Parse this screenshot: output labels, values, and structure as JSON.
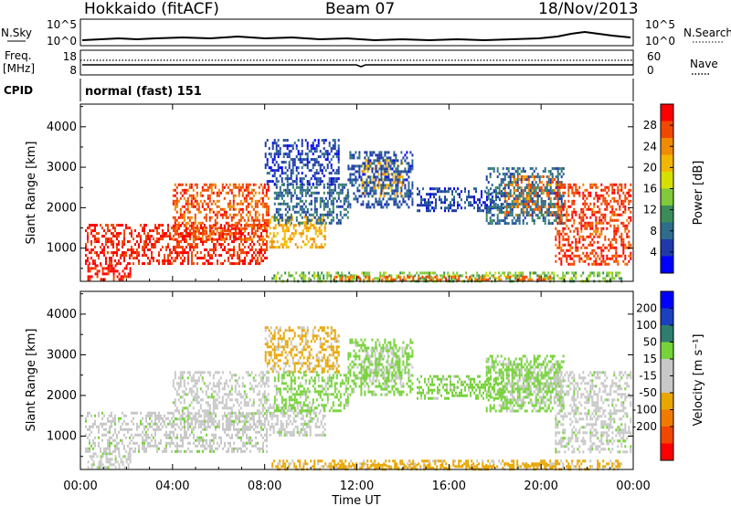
{
  "header": {
    "station": "Hokkaido (fitACF)",
    "beam": "Beam 07",
    "date": "18/Nov/2013"
  },
  "strip_labels": {
    "nsky": "N.Sky",
    "freq": "Freq.",
    "freq_unit": "[MHz]",
    "cpid": "CPID",
    "nsearch": "N.Search",
    "nave": "Nave",
    "cpid_text": "normal (fast) 151",
    "noise_ticks": [
      "10^5",
      "10^0"
    ],
    "freq_ticks": [
      "18",
      "8"
    ],
    "nave_ticks": [
      "60",
      "0"
    ]
  },
  "colors": {
    "power": [
      "#0000ff",
      "#1f3aa8",
      "#2e6d8c",
      "#3c8c5a",
      "#7fc93a",
      "#d6e000",
      "#f2b600",
      "#f08a00",
      "#f04800",
      "#ff0000"
    ],
    "velocity": [
      "#0000ff",
      "#1a40c0",
      "#2e7d6e",
      "#77d33a",
      "#c8c8c8",
      "#c8c8c8",
      "#e8a600",
      "#f07a00",
      "#f04800",
      "#ff0000"
    ]
  },
  "chart_data": [
    {
      "type": "heatmap",
      "title": "",
      "xlabel": "",
      "ylabel": "Slant Range [km]",
      "x_ticks": [
        "00:00",
        "04:00",
        "08:00",
        "12:00",
        "16:00",
        "20:00",
        "00:00"
      ],
      "x_range_hours": [
        0,
        24
      ],
      "y_ticks": [
        1000,
        2000,
        3000,
        4000
      ],
      "ylim": [
        180,
        4560
      ],
      "colorbar": {
        "label": "Power [dB]",
        "ticks": [
          4,
          8,
          12,
          16,
          20,
          24,
          28
        ],
        "range": [
          0,
          32
        ]
      },
      "regions": [
        {
          "name": "ground-scatter-low",
          "x": [
            0.3,
            2.2
          ],
          "y": [
            250,
            600
          ],
          "level": 30
        },
        {
          "name": "morning-echo",
          "x": [
            0.2,
            8.1
          ],
          "y": [
            600,
            1600
          ],
          "level": 29
        },
        {
          "name": "morning-streaks",
          "x": [
            4.0,
            8.2
          ],
          "y": [
            1200,
            2600
          ],
          "level": 27
        },
        {
          "name": "tongue-low",
          "x": [
            8.2,
            10.6
          ],
          "y": [
            1000,
            1800
          ],
          "level": 22
        },
        {
          "name": "tongue-mid",
          "x": [
            8.4,
            11.6
          ],
          "y": [
            1600,
            2600
          ],
          "level": 8
        },
        {
          "name": "tongue-high",
          "x": [
            8.0,
            11.2
          ],
          "y": [
            2600,
            3700
          ],
          "level": 5
        },
        {
          "name": "noon-patch",
          "x": [
            12.2,
            14.0
          ],
          "y": [
            2300,
            3200
          ],
          "level": 22
        },
        {
          "name": "noon-patch-edge",
          "x": [
            11.6,
            14.4
          ],
          "y": [
            2000,
            3400
          ],
          "level": 6
        },
        {
          "name": "afternoon-band",
          "x": [
            14.6,
            18.4
          ],
          "y": [
            1900,
            2500
          ],
          "level": 5
        },
        {
          "name": "evening-patch",
          "x": [
            18.4,
            20.8
          ],
          "y": [
            1800,
            2800
          ],
          "level": 25
        },
        {
          "name": "evening-edge",
          "x": [
            17.6,
            21.0
          ],
          "y": [
            1600,
            3000
          ],
          "level": 8
        },
        {
          "name": "late-streaks",
          "x": [
            20.6,
            23.9
          ],
          "y": [
            600,
            2600
          ],
          "level": 28
        },
        {
          "name": "near-range-band",
          "x": [
            8.3,
            23.5
          ],
          "y": [
            190,
            420
          ],
          "level": 14
        },
        {
          "name": "near-range-hot",
          "x": [
            11.0,
            20.5
          ],
          "y": [
            190,
            320
          ],
          "level": 26
        }
      ]
    },
    {
      "type": "heatmap",
      "title": "",
      "xlabel": "Time UT",
      "ylabel": "Slant Range [km]",
      "x_ticks": [
        "00:00",
        "04:00",
        "08:00",
        "12:00",
        "16:00",
        "20:00",
        "00:00"
      ],
      "x_range_hours": [
        0,
        24
      ],
      "y_ticks": [
        1000,
        2000,
        3000,
        4000
      ],
      "ylim": [
        180,
        4560
      ],
      "colorbar": {
        "label": "Velocity [m s⁻¹]",
        "ticks": [
          "200",
          "100",
          "50",
          "15",
          "-15",
          "-50",
          "-100",
          "-200"
        ],
        "range": [
          -250,
          250
        ]
      },
      "regions": [
        {
          "name": "ground-scatter-low",
          "x": [
            0.3,
            2.2
          ],
          "y": [
            250,
            600
          ],
          "value": 0
        },
        {
          "name": "morning-echo",
          "x": [
            0.2,
            8.1
          ],
          "y": [
            600,
            1600
          ],
          "value": 0
        },
        {
          "name": "morning-streaks",
          "x": [
            4.0,
            8.2
          ],
          "y": [
            1200,
            2600
          ],
          "value": 0
        },
        {
          "name": "tongue-low",
          "x": [
            8.2,
            10.6
          ],
          "y": [
            1000,
            1800
          ],
          "value": 0
        },
        {
          "name": "tongue-mid",
          "x": [
            8.4,
            11.6
          ],
          "y": [
            1600,
            2600
          ],
          "value": 30
        },
        {
          "name": "tongue-high",
          "x": [
            8.0,
            11.2
          ],
          "y": [
            2600,
            3700
          ],
          "value": -60
        },
        {
          "name": "noon-patch",
          "x": [
            12.2,
            14.0
          ],
          "y": [
            2300,
            3200
          ],
          "value": 0
        },
        {
          "name": "noon-patch-edge",
          "x": [
            11.6,
            14.4
          ],
          "y": [
            2000,
            3400
          ],
          "value": 30
        },
        {
          "name": "afternoon-band",
          "x": [
            14.6,
            18.4
          ],
          "y": [
            1900,
            2500
          ],
          "value": 30
        },
        {
          "name": "evening-patch",
          "x": [
            18.4,
            20.8
          ],
          "y": [
            1800,
            2800
          ],
          "value": 0
        },
        {
          "name": "evening-edge",
          "x": [
            17.6,
            21.0
          ],
          "y": [
            1600,
            3000
          ],
          "value": 30
        },
        {
          "name": "late-streaks",
          "x": [
            20.6,
            23.9
          ],
          "y": [
            600,
            2600
          ],
          "value": 0
        },
        {
          "name": "near-range-band",
          "x": [
            8.3,
            23.5
          ],
          "y": [
            190,
            420
          ],
          "value": -60
        },
        {
          "name": "near-range-hot",
          "x": [
            11.0,
            20.5
          ],
          "y": [
            190,
            320
          ],
          "value": -80
        }
      ]
    }
  ]
}
